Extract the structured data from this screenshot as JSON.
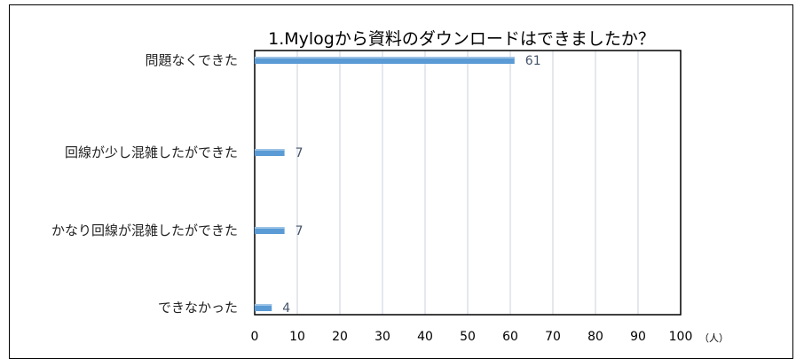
{
  "chart_data": {
    "type": "bar",
    "orientation": "horizontal",
    "title": "1.Mylogから資料のダウンロードはできましたか？",
    "categories": [
      "問題なくできた",
      "回線が少し混雑したができた",
      "かなり回線が混雑したができた",
      "できなかった"
    ],
    "values": [
      61,
      7,
      7,
      4
    ],
    "xlabel": "",
    "unit_label": "（人）",
    "xlim": [
      0,
      100
    ],
    "ticks": [
      "0",
      "10",
      "20",
      "30",
      "40",
      "50",
      "60",
      "70",
      "80",
      "90",
      "100"
    ],
    "grid": true,
    "legend": "none",
    "bar_color": "#5b9bd5",
    "label_color": "#44546a"
  }
}
